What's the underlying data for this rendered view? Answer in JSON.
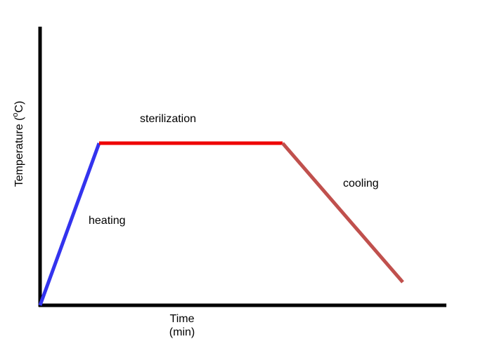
{
  "y_label": {
    "text": "Temperature (",
    "superscript": "o",
    "suffix": "C)"
  },
  "x_label": {
    "line1": "Time",
    "line2": "(min)"
  },
  "segments": [
    {
      "label": "heating"
    },
    {
      "label": "sterilization"
    },
    {
      "label": "cooling"
    }
  ]
}
